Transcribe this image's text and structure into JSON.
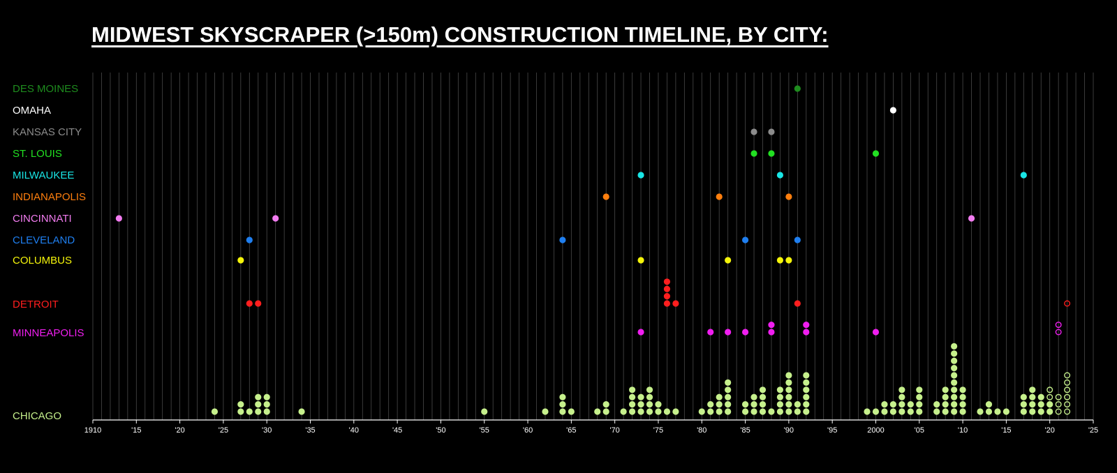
{
  "chart_data": {
    "type": "scatter",
    "title": "MIDWEST SKYSCRAPER (>150m) CONSTRUCTION TIMELINE, BY CITY:",
    "xlim": [
      1910,
      2025
    ],
    "grid": true,
    "x_tick_labels": [
      "1910",
      "'15",
      "'20",
      "'25",
      "'30",
      "'35",
      "'40",
      "'45",
      "'50",
      "'55",
      "'60",
      "'65",
      "'70",
      "'75",
      "'80",
      "'85",
      "'90",
      "'95",
      "2000",
      "'05",
      "'10",
      "'15",
      "'20",
      "'25"
    ],
    "legend": "none",
    "note_marker": "filled = completed, hollow = not shown as filled",
    "cities": [
      {
        "name": "DES MOINES",
        "color": "#1e8c1e",
        "completed": [
          1991
        ],
        "hollow": []
      },
      {
        "name": "OMAHA",
        "color": "#ffffff",
        "completed": [
          2002
        ],
        "hollow": []
      },
      {
        "name": "KANSAS CITY",
        "color": "#8c8c8c",
        "completed": [
          1986,
          1988
        ],
        "hollow": []
      },
      {
        "name": "ST. LOUIS",
        "color": "#22e022",
        "completed": [
          1986,
          1988,
          2000
        ],
        "hollow": []
      },
      {
        "name": "MILWAUKEE",
        "color": "#19e6e6",
        "completed": [
          1973,
          1989,
          2017
        ],
        "hollow": []
      },
      {
        "name": "INDIANAPOLIS",
        "color": "#ff7f0e",
        "completed": [
          1969,
          1982,
          1990
        ],
        "hollow": []
      },
      {
        "name": "CINCINNATI",
        "color": "#f27cf0",
        "completed": [
          1913,
          1931,
          2011
        ],
        "hollow": []
      },
      {
        "name": "CLEVELAND",
        "color": "#1f7ff0",
        "completed": [
          1928,
          1964,
          1985,
          1991
        ],
        "hollow": []
      },
      {
        "name": "COLUMBUS",
        "color": "#f5f50a",
        "completed": [
          1927,
          1973,
          1983,
          1989,
          1990
        ],
        "hollow": []
      },
      {
        "name": "DETROIT",
        "color": "#ff1e1e",
        "completed": [
          1928,
          1929,
          1976,
          1976,
          1976,
          1976,
          1977,
          1991
        ],
        "hollow": [
          2022
        ]
      },
      {
        "name": "MINNEAPOLIS",
        "color": "#f01ef0",
        "completed": [
          1973,
          1981,
          1983,
          1985,
          1988,
          1988,
          1992,
          1992,
          2000
        ],
        "hollow": [
          2021,
          2021
        ]
      },
      {
        "name": "CHICAGO",
        "color": "#c6f08c",
        "counts": [
          [
            1924,
            1
          ],
          [
            1927,
            2
          ],
          [
            1928,
            1
          ],
          [
            1929,
            3
          ],
          [
            1930,
            3
          ],
          [
            1934,
            1
          ],
          [
            1955,
            1
          ],
          [
            1962,
            1
          ],
          [
            1964,
            3
          ],
          [
            1965,
            1
          ],
          [
            1968,
            1
          ],
          [
            1969,
            2
          ],
          [
            1971,
            1
          ],
          [
            1972,
            4
          ],
          [
            1973,
            3
          ],
          [
            1974,
            4
          ],
          [
            1975,
            2
          ],
          [
            1976,
            1
          ],
          [
            1977,
            1
          ],
          [
            1980,
            1
          ],
          [
            1981,
            2
          ],
          [
            1982,
            3
          ],
          [
            1983,
            5
          ],
          [
            1985,
            2
          ],
          [
            1986,
            3
          ],
          [
            1987,
            4
          ],
          [
            1988,
            1
          ],
          [
            1989,
            4
          ],
          [
            1990,
            6
          ],
          [
            1991,
            2
          ],
          [
            1992,
            6
          ],
          [
            1999,
            1
          ],
          [
            2000,
            1
          ],
          [
            2001,
            2
          ],
          [
            2002,
            2
          ],
          [
            2003,
            4
          ],
          [
            2004,
            2
          ],
          [
            2005,
            4
          ],
          [
            2007,
            2
          ],
          [
            2008,
            4
          ],
          [
            2009,
            10
          ],
          [
            2010,
            4
          ],
          [
            2012,
            1
          ],
          [
            2013,
            2
          ],
          [
            2014,
            1
          ],
          [
            2015,
            1
          ],
          [
            2017,
            3
          ],
          [
            2018,
            4
          ],
          [
            2019,
            3
          ],
          [
            2020,
            2
          ]
        ],
        "hollow_counts": [
          [
            2020,
            2
          ],
          [
            2021,
            3
          ],
          [
            2022,
            6
          ]
        ]
      }
    ]
  }
}
